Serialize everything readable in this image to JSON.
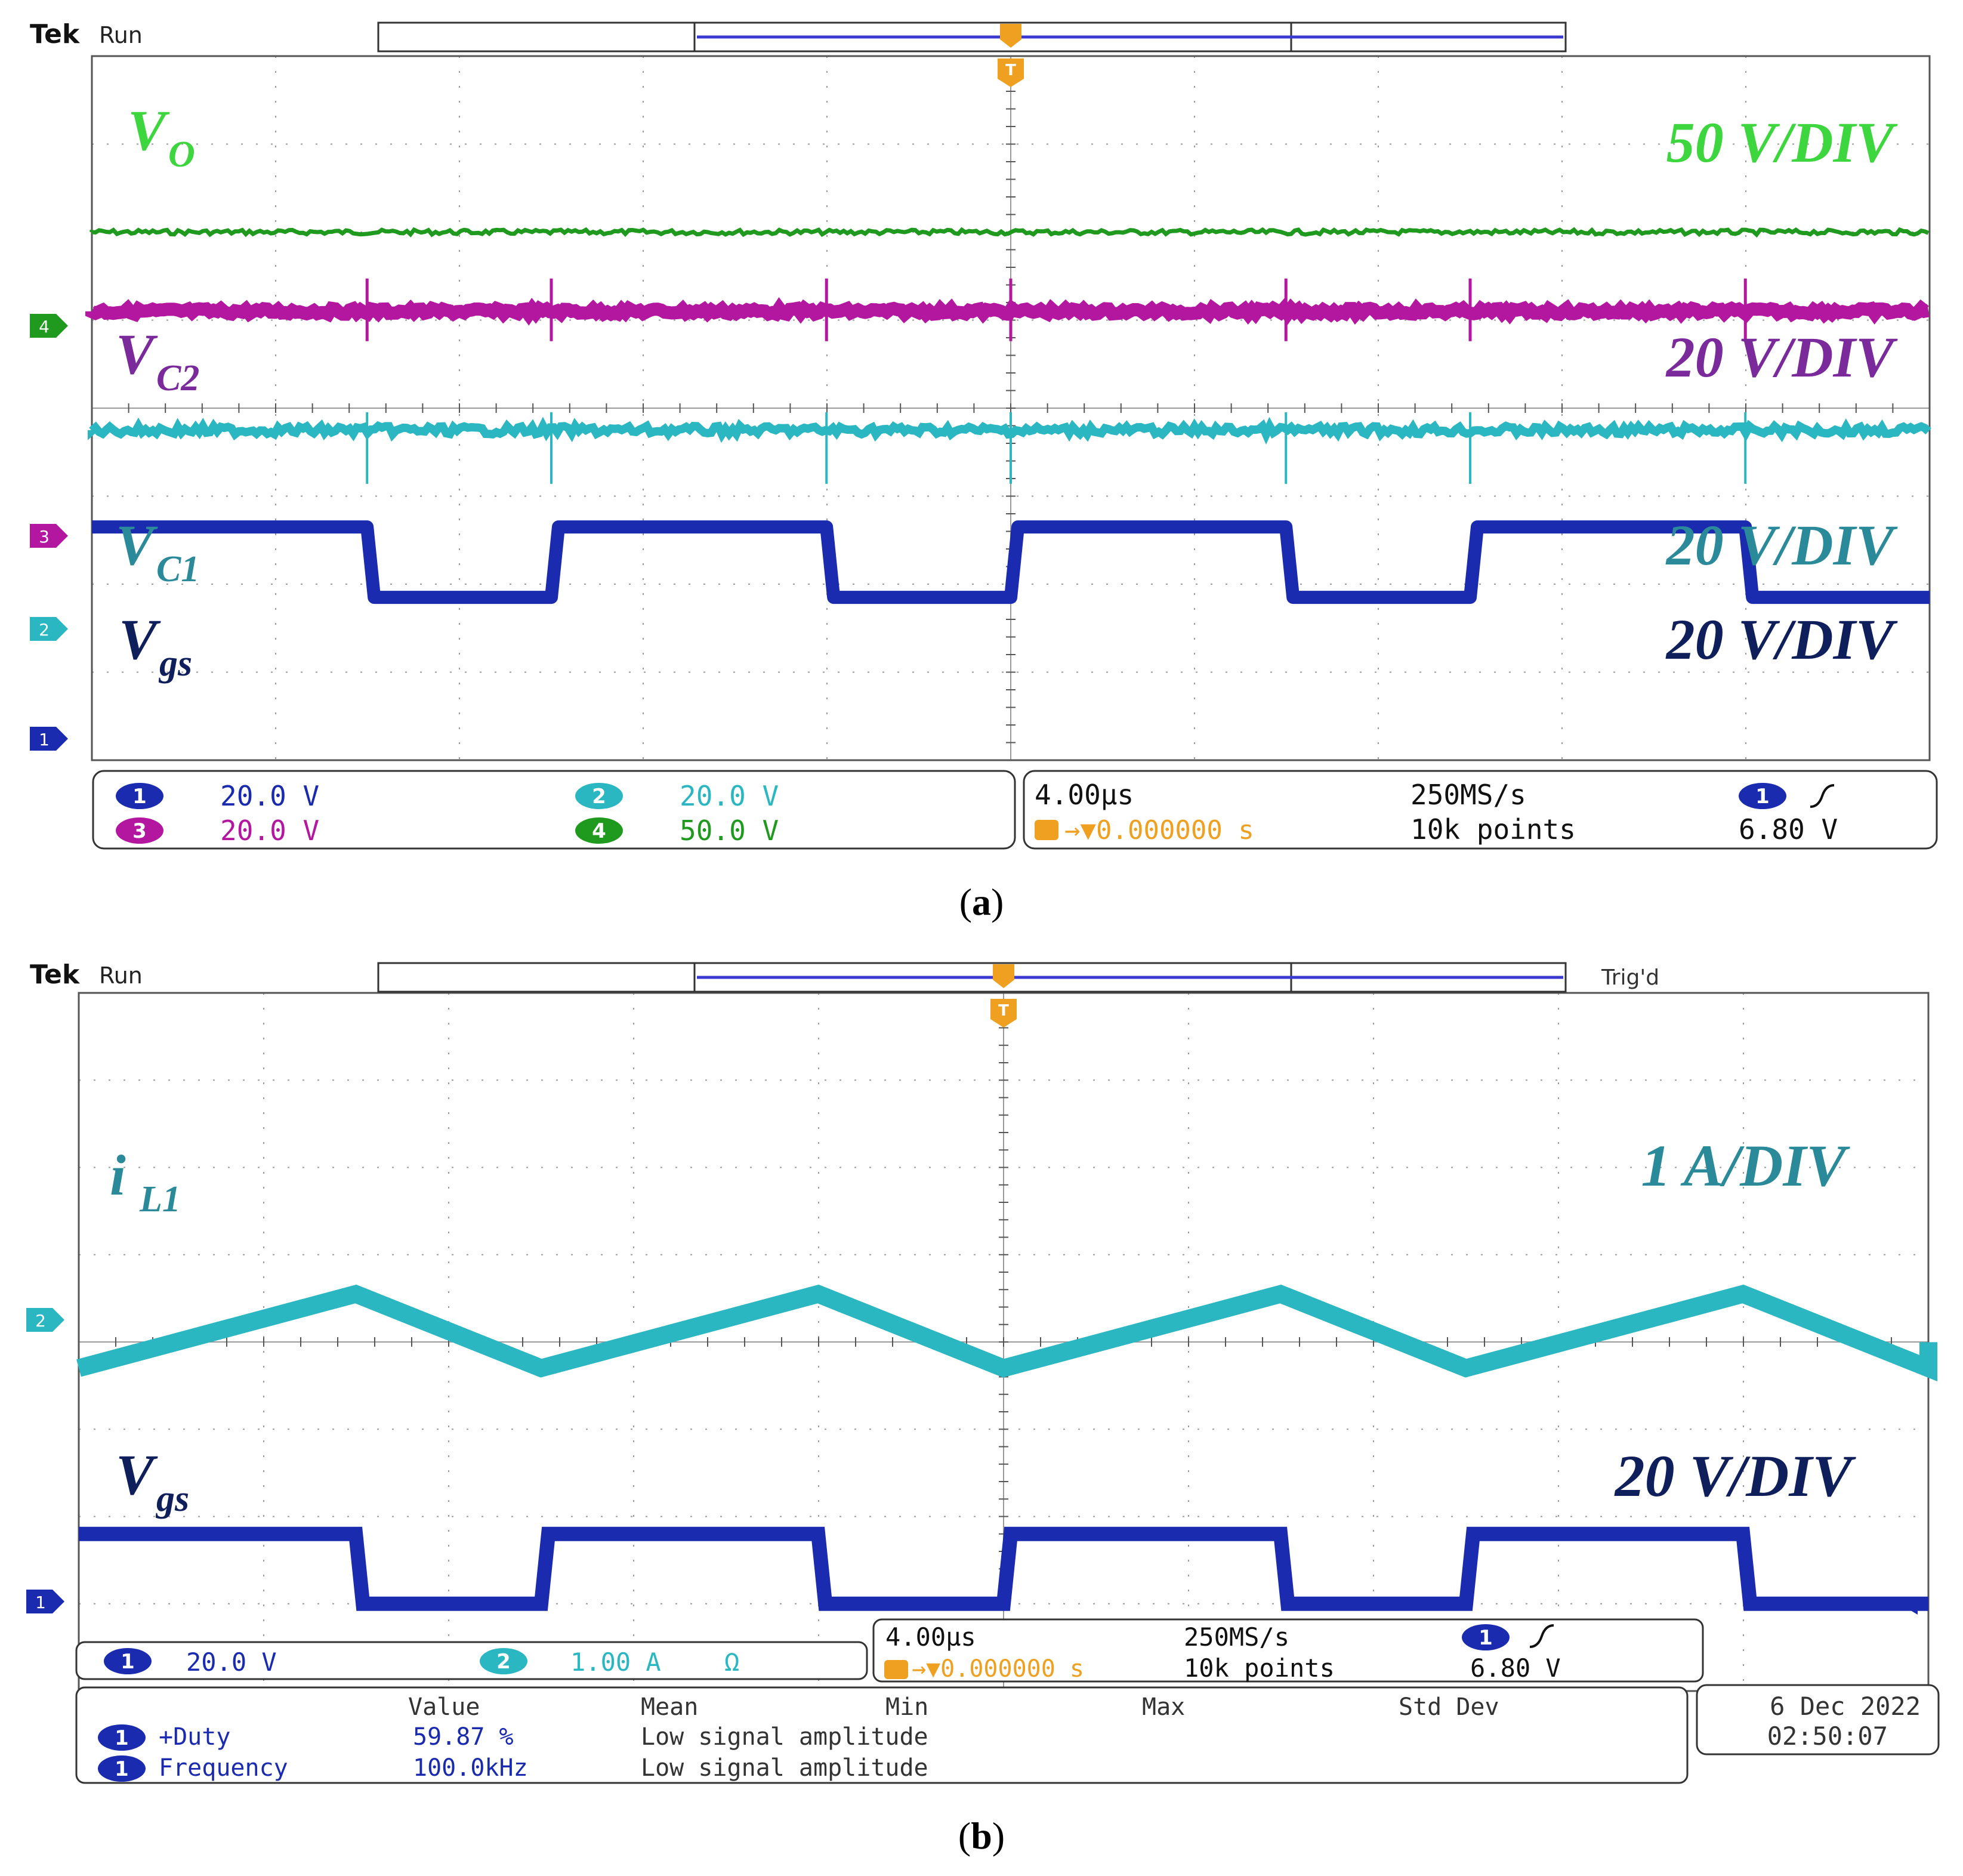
{
  "colors": {
    "ch1": "#1a2bb0",
    "ch2": "#2ab7c2",
    "ch3": "#b3179f",
    "ch4": "#1f9a1f",
    "vo_label": "#3ed63e",
    "vc2_label": "#7a2a9a",
    "vc1_label": "#2a8a9a",
    "vgs_label": "#0f1f5c",
    "il1_label": "#2a8a9a",
    "trigger": "#f0a020",
    "grid": "#9a9a9a"
  },
  "chart_data": [
    {
      "type": "line",
      "panel": "a",
      "caption": "a",
      "header": {
        "brand": "Tek",
        "status": "Run"
      },
      "x": {
        "divisions": 10,
        "time_per_div": "4.00µs"
      },
      "y": {
        "divisions": 8
      },
      "series": [
        {
          "name": "V_O",
          "label_main": "V",
          "label_sub": "O",
          "scale_label": "50 V/DIV",
          "channel": 4,
          "waveform": "dc",
          "level_div": 2.0
        },
        {
          "name": "V_C2",
          "label_main": "V",
          "label_sub": "C2",
          "scale_label": "20 V/DIV",
          "channel": 3,
          "waveform": "dc",
          "level_div": 1.1
        },
        {
          "name": "V_C1",
          "label_main": "V",
          "label_sub": "C1",
          "scale_label": "20 V/DIV",
          "channel": 2,
          "waveform": "dc",
          "level_div": -0.25
        },
        {
          "name": "V_gs",
          "label_main": "V",
          "label_sub": "gs",
          "scale_label": "20 V/DIV",
          "channel": 1,
          "waveform": "pulse",
          "period_div": 2.5,
          "duty": 0.599,
          "high_div": -1.35,
          "low_div": -2.15
        }
      ],
      "channel_readouts": [
        {
          "ch": "1",
          "value": "20.0 V"
        },
        {
          "ch": "2",
          "value": "20.0 V"
        },
        {
          "ch": "3",
          "value": "20.0 V"
        },
        {
          "ch": "4",
          "value": "50.0 V"
        }
      ],
      "timebase": {
        "time_div": "4.00µs",
        "trigger_pos": "0.000000 s",
        "sample_rate": "250MS/s",
        "points": "10k points",
        "trig_ch": "1",
        "trig_level": "6.80 V"
      },
      "markers": [
        "4",
        "3",
        "2",
        "1"
      ]
    },
    {
      "type": "line",
      "panel": "b",
      "caption": "b",
      "header": {
        "brand": "Tek",
        "status": "Run",
        "trig_status": "Trig'd"
      },
      "x": {
        "divisions": 10,
        "time_per_div": "4.00µs"
      },
      "y": {
        "divisions": 8
      },
      "series": [
        {
          "name": "i_L1",
          "label_main": "i",
          "label_sub": "L1",
          "scale_label": "1 A/DIV",
          "channel": 2,
          "waveform": "triangle",
          "period_div": 2.5,
          "duty": 0.599,
          "min_div": -0.3,
          "max_div": 0.55
        },
        {
          "name": "V_gs",
          "label_main": "V",
          "label_sub": "gs",
          "scale_label": "20 V/DIV",
          "channel": 1,
          "waveform": "pulse",
          "period_div": 2.5,
          "duty": 0.599,
          "high_div": -2.2,
          "low_div": -3.0
        }
      ],
      "channel_readouts": [
        {
          "ch": "1",
          "value": "20.0 V"
        },
        {
          "ch": "2",
          "value": "1.00 A",
          "extra": "Ω"
        }
      ],
      "timebase": {
        "time_div": "4.00µs",
        "trigger_pos": "0.000000 s",
        "sample_rate": "250MS/s",
        "points": "10k points",
        "trig_ch": "1",
        "trig_level": "6.80 V"
      },
      "measurements": {
        "headers": [
          "Value",
          "Mean",
          "Min",
          "Max",
          "Std Dev"
        ],
        "rows": [
          {
            "ch": "1",
            "name": "+Duty",
            "value": "59.87 %",
            "mean": "Low signal amplitude"
          },
          {
            "ch": "1",
            "name": "Frequency",
            "value": "100.0kHz",
            "mean": "Low signal amplitude"
          }
        ]
      },
      "date": "6 Dec  2022",
      "time": "02:50:07",
      "markers": [
        "2",
        "1"
      ]
    }
  ]
}
